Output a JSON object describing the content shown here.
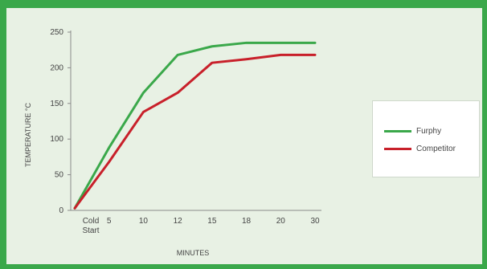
{
  "chart_data": {
    "type": "line",
    "title": "",
    "xlabel": "MINUTES",
    "ylabel": "TEMPERATURE °C",
    "categories": [
      "Cold Start",
      "5",
      "10",
      "12",
      "15",
      "18",
      "20",
      "30"
    ],
    "ylim": [
      0,
      250
    ],
    "yticks": [
      0,
      50,
      100,
      150,
      200,
      250
    ],
    "grid": false,
    "legend_position": "right",
    "series": [
      {
        "name": "Furphy",
        "color": "#3aa84a",
        "values": [
          3,
          88,
          165,
          218,
          230,
          235,
          235,
          235
        ]
      },
      {
        "name": "Competitor",
        "color": "#c8202a",
        "values": [
          3,
          68,
          138,
          165,
          207,
          212,
          218,
          218
        ]
      }
    ]
  }
}
